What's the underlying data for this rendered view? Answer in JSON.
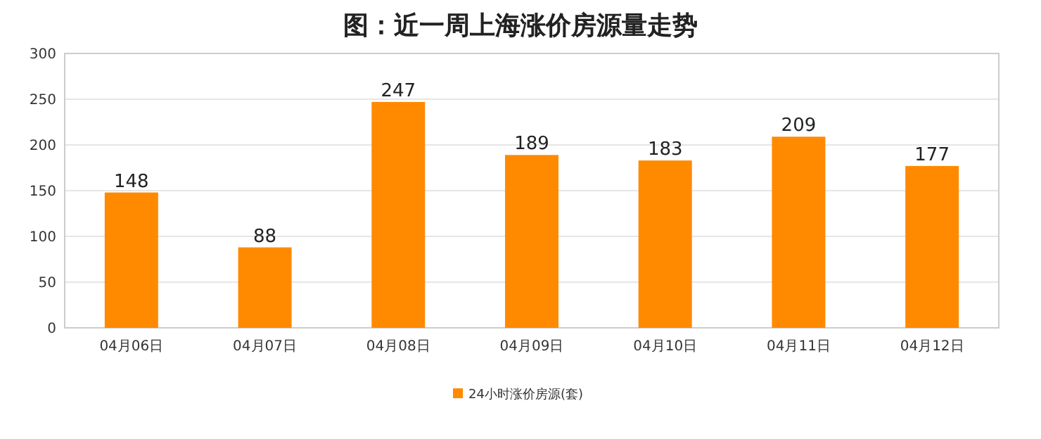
{
  "chart_data": {
    "type": "bar",
    "title": "图：近一周上海涨价房源量走势",
    "categories": [
      "04月06日",
      "04月07日",
      "04月08日",
      "04月09日",
      "04月10日",
      "04月11日",
      "04月12日"
    ],
    "series": [
      {
        "name": "24小时涨价房源(套)",
        "color": "#ff8a00",
        "values": [
          148,
          88,
          247,
          189,
          183,
          209,
          177
        ]
      }
    ],
    "ylim": [
      0,
      300
    ],
    "yticks": [
      0,
      50,
      100,
      150,
      200,
      250,
      300
    ],
    "grid": "y",
    "data_labels": true,
    "legend": "bottom"
  }
}
